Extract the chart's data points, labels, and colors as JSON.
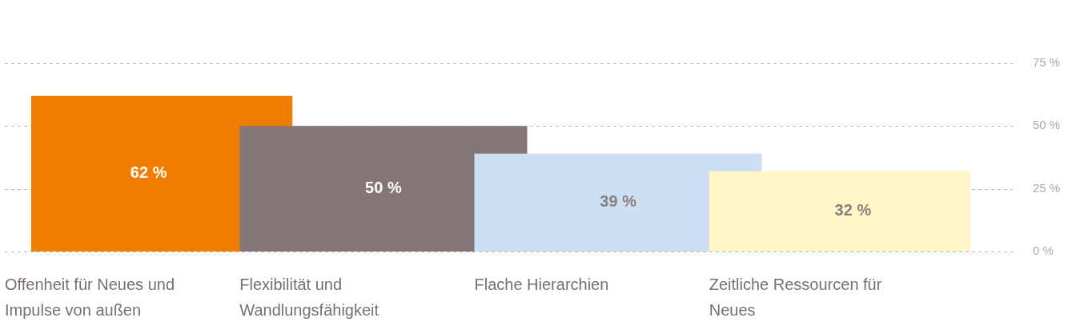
{
  "chart_data": {
    "type": "bar",
    "categories": [
      "Offenheit für Neues und Impulse von außen",
      "Flexibilität und Wandlungsfähigkeit",
      "Flache Hierarchien",
      "Zeitliche Ressourcen für Neues"
    ],
    "values": [
      62,
      50,
      39,
      32
    ],
    "colors": [
      "#ef7d00",
      "#837674",
      "#cddff3",
      "#fff6c8"
    ],
    "value_labels": [
      "62 %",
      "50 %",
      "39 %",
      "32 %"
    ],
    "ylim": [
      0,
      75
    ],
    "yticks": [
      {
        "value": 0,
        "label": "0 %"
      },
      {
        "value": 25,
        "label": "25 %"
      },
      {
        "value": 50,
        "label": "50 %"
      },
      {
        "value": 75,
        "label": "75 %"
      }
    ],
    "grid": "y",
    "legend": false
  }
}
